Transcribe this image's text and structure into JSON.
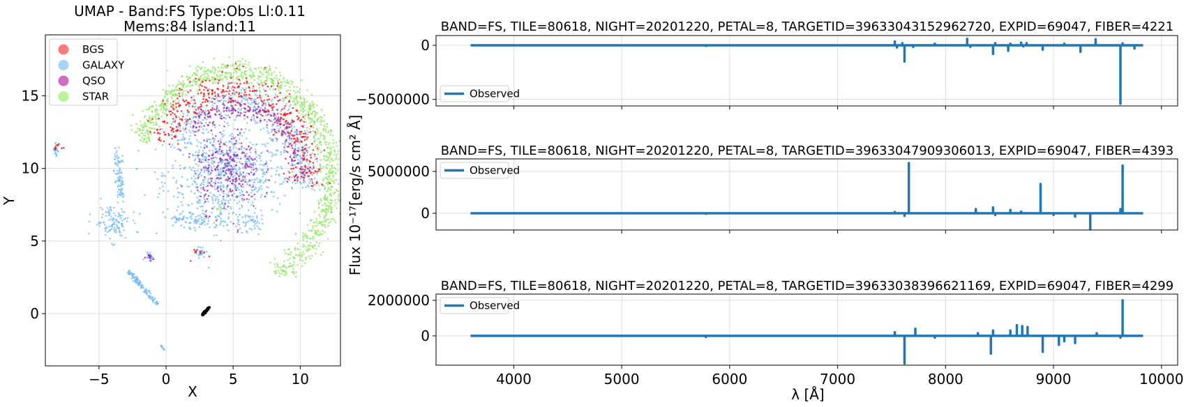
{
  "chart_data": [
    {
      "type": "scatter",
      "title": "UMAP  -  Band:FS Type:Obs Ll:0.11",
      "subtitle": "Mems:84 Island:11",
      "xlabel": "X",
      "ylabel": "Y",
      "xlim": [
        -9,
        13
      ],
      "ylim": [
        -3.6,
        19.2
      ],
      "xticks": [
        -5,
        0,
        5,
        10
      ],
      "yticks": [
        0,
        5,
        10,
        15
      ],
      "xtick_labels": [
        "−5",
        "0",
        "5",
        "10"
      ],
      "ytick_labels": [
        "0",
        "5",
        "10",
        "15"
      ],
      "grid": true,
      "legend_position": "upper-left",
      "series": [
        {
          "name": "BGS",
          "color": "#ff0000",
          "clusters": [
            {
              "kind": "arc",
              "cx": 5.0,
              "cy": 9.8,
              "r": 5.6,
              "a0": -10,
              "a1": 160,
              "rw": 1.2,
              "n": 420
            },
            {
              "kind": "blob",
              "x": -8.0,
              "y": 11.5,
              "sx": 0.3,
              "sy": 0.15,
              "n": 8
            },
            {
              "kind": "blob",
              "x": 2.5,
              "y": 4.3,
              "sx": 0.3,
              "sy": 0.25,
              "n": 10
            }
          ]
        },
        {
          "name": "GALAXY",
          "color": "#74b9f7",
          "clusters": [
            {
              "kind": "blob",
              "x": 4.5,
              "y": 9.6,
              "sx": 2.3,
              "sy": 1.6,
              "n": 700
            },
            {
              "kind": "arc",
              "cx": 5.2,
              "cy": 9.5,
              "r": 5.2,
              "a0": -10,
              "a1": 150,
              "rw": 1.4,
              "n": 500
            },
            {
              "kind": "line",
              "x0": -3.6,
              "y0": 11.1,
              "x1": -3.4,
              "y1": 8.0,
              "w": 0.35,
              "n": 90
            },
            {
              "kind": "blob",
              "x": -4.0,
              "y": 6.3,
              "sx": 0.7,
              "sy": 0.6,
              "n": 120
            },
            {
              "kind": "line",
              "x0": -2.8,
              "y0": 2.9,
              "x1": -0.6,
              "y1": 0.6,
              "w": 0.18,
              "n": 110
            },
            {
              "kind": "blob",
              "x": -8.2,
              "y": 11.3,
              "sx": 0.1,
              "sy": 0.3,
              "n": 25
            },
            {
              "kind": "line",
              "x0": 0.5,
              "y0": 6.5,
              "x1": 7.0,
              "y1": 6.2,
              "w": 0.6,
              "n": 150
            },
            {
              "kind": "blob",
              "x": 2.6,
              "y": 4.2,
              "sx": 0.2,
              "sy": 0.2,
              "n": 25
            },
            {
              "kind": "blob",
              "x": -1.2,
              "y": 4.0,
              "sx": 0.2,
              "sy": 0.15,
              "n": 20
            },
            {
              "kind": "line",
              "x0": -0.4,
              "y0": -2.1,
              "x1": -0.1,
              "y1": -2.6,
              "w": 0.05,
              "n": 10
            }
          ]
        },
        {
          "name": "QSO",
          "color": "#9b1fa8",
          "clusters": [
            {
              "kind": "blob",
              "x": 4.6,
              "y": 10.0,
              "sx": 1.2,
              "sy": 1.4,
              "n": 260
            },
            {
              "kind": "arc",
              "cx": 5.3,
              "cy": 9.6,
              "r": 4.6,
              "a0": -5,
              "a1": 140,
              "rw": 0.7,
              "n": 220
            },
            {
              "kind": "blob",
              "x": -1.2,
              "y": 3.9,
              "sx": 0.15,
              "sy": 0.12,
              "n": 10
            }
          ]
        },
        {
          "name": "STAR",
          "color": "#8ee860",
          "clusters": [
            {
              "kind": "arc",
              "cx": 5.0,
              "cy": 9.4,
              "r": 7.3,
              "a0": -65,
              "a1": 160,
              "rw": 0.8,
              "n": 1100
            },
            {
              "kind": "blob",
              "x": 3.9,
              "y": 7.2,
              "sx": 0.1,
              "sy": 0.1,
              "n": 6
            }
          ]
        },
        {
          "name": "",
          "color": "#000000",
          "clusters": [
            {
              "kind": "line",
              "x0": 2.7,
              "y0": -0.1,
              "x1": 3.2,
              "y1": 0.4,
              "w": 0.08,
              "n": 40
            }
          ]
        }
      ]
    },
    {
      "type": "line",
      "title": "BAND=FS, TILE=80618, NIGHT=20201220, PETAL=8, TARGETID=39633043152962720, EXPID=69047, FIBER=4221",
      "ylabel": "Flux 10⁻¹⁷[erg/s cm² Å]",
      "xlim": [
        3280,
        10150
      ],
      "ylim": [
        -5600000,
        900000
      ],
      "yticks": [
        0,
        -5000000
      ],
      "ytick_labels": [
        "0",
        "−5000000"
      ],
      "legend": "Observed",
      "legend_position": "lower-left",
      "color": "#1f77b4",
      "x_range": [
        3600,
        9830
      ],
      "baseline": 0,
      "spikes": [
        [
          5780,
          -60000
        ],
        [
          7530,
          350000
        ],
        [
          7550,
          -200000
        ],
        [
          7600,
          200000
        ],
        [
          7620,
          -1500000
        ],
        [
          7700,
          -150000
        ],
        [
          7900,
          150000
        ],
        [
          8200,
          600000
        ],
        [
          8230,
          -150000
        ],
        [
          8440,
          -800000
        ],
        [
          8460,
          200000
        ],
        [
          8580,
          -500000
        ],
        [
          8600,
          150000
        ],
        [
          8700,
          250000
        ],
        [
          8720,
          -100000
        ],
        [
          8750,
          200000
        ],
        [
          8900,
          -400000
        ],
        [
          9100,
          150000
        ],
        [
          9250,
          -600000
        ],
        [
          9390,
          550000
        ],
        [
          9620,
          -5400000
        ],
        [
          9640,
          180000
        ],
        [
          9750,
          -300000
        ]
      ]
    },
    {
      "type": "line",
      "title": "BAND=FS, TILE=80618, NIGHT=20201220, PETAL=8, TARGETID=39633047909306013, EXPID=69047, FIBER=4393",
      "xlim": [
        3280,
        10150
      ],
      "ylim": [
        -2000000,
        6500000
      ],
      "yticks": [
        0,
        5000000
      ],
      "ytick_labels": [
        "0",
        "5000000"
      ],
      "legend": "Observed",
      "legend_position": "upper-left",
      "color": "#1f77b4",
      "x_range": [
        3600,
        9830
      ],
      "baseline": 0,
      "spikes": [
        [
          5780,
          -60000
        ],
        [
          7530,
          150000
        ],
        [
          7620,
          -300000
        ],
        [
          7660,
          6000000
        ],
        [
          8280,
          500000
        ],
        [
          8440,
          700000
        ],
        [
          8460,
          -200000
        ],
        [
          8600,
          400000
        ],
        [
          8700,
          200000
        ],
        [
          8880,
          3500000
        ],
        [
          9000,
          -200000
        ],
        [
          9200,
          -400000
        ],
        [
          9340,
          -1900000
        ],
        [
          9620,
          500000
        ],
        [
          9640,
          5700000
        ]
      ]
    },
    {
      "type": "line",
      "title": "BAND=FS, TILE=80618, NIGHT=20201220, PETAL=8, TARGETID=39633038396621169, EXPID=69047, FIBER=4299",
      "xlabel": "λ [Å]",
      "xlim": [
        3280,
        10150
      ],
      "ylim": [
        -1650000,
        2350000
      ],
      "xticks": [
        4000,
        5000,
        6000,
        7000,
        8000,
        9000,
        10000
      ],
      "xtick_labels": [
        "4000",
        "5000",
        "6000",
        "7000",
        "8000",
        "9000",
        "10000"
      ],
      "yticks": [
        0,
        2000000
      ],
      "ytick_labels": [
        "0",
        "2000000"
      ],
      "legend": "Observed",
      "legend_position": "upper-left",
      "color": "#1f77b4",
      "x_range": [
        3600,
        9830
      ],
      "baseline": 0,
      "spikes": [
        [
          5780,
          -60000
        ],
        [
          7530,
          200000
        ],
        [
          7620,
          -1550000
        ],
        [
          7720,
          400000
        ],
        [
          7900,
          -100000
        ],
        [
          8300,
          150000
        ],
        [
          8420,
          -1000000
        ],
        [
          8440,
          300000
        ],
        [
          8600,
          300000
        ],
        [
          8660,
          600000
        ],
        [
          8710,
          550000
        ],
        [
          8760,
          500000
        ],
        [
          8900,
          -900000
        ],
        [
          9050,
          -500000
        ],
        [
          9100,
          -300000
        ],
        [
          9200,
          -400000
        ],
        [
          9400,
          150000
        ],
        [
          9620,
          -100000
        ],
        [
          9640,
          2000000
        ]
      ]
    }
  ]
}
